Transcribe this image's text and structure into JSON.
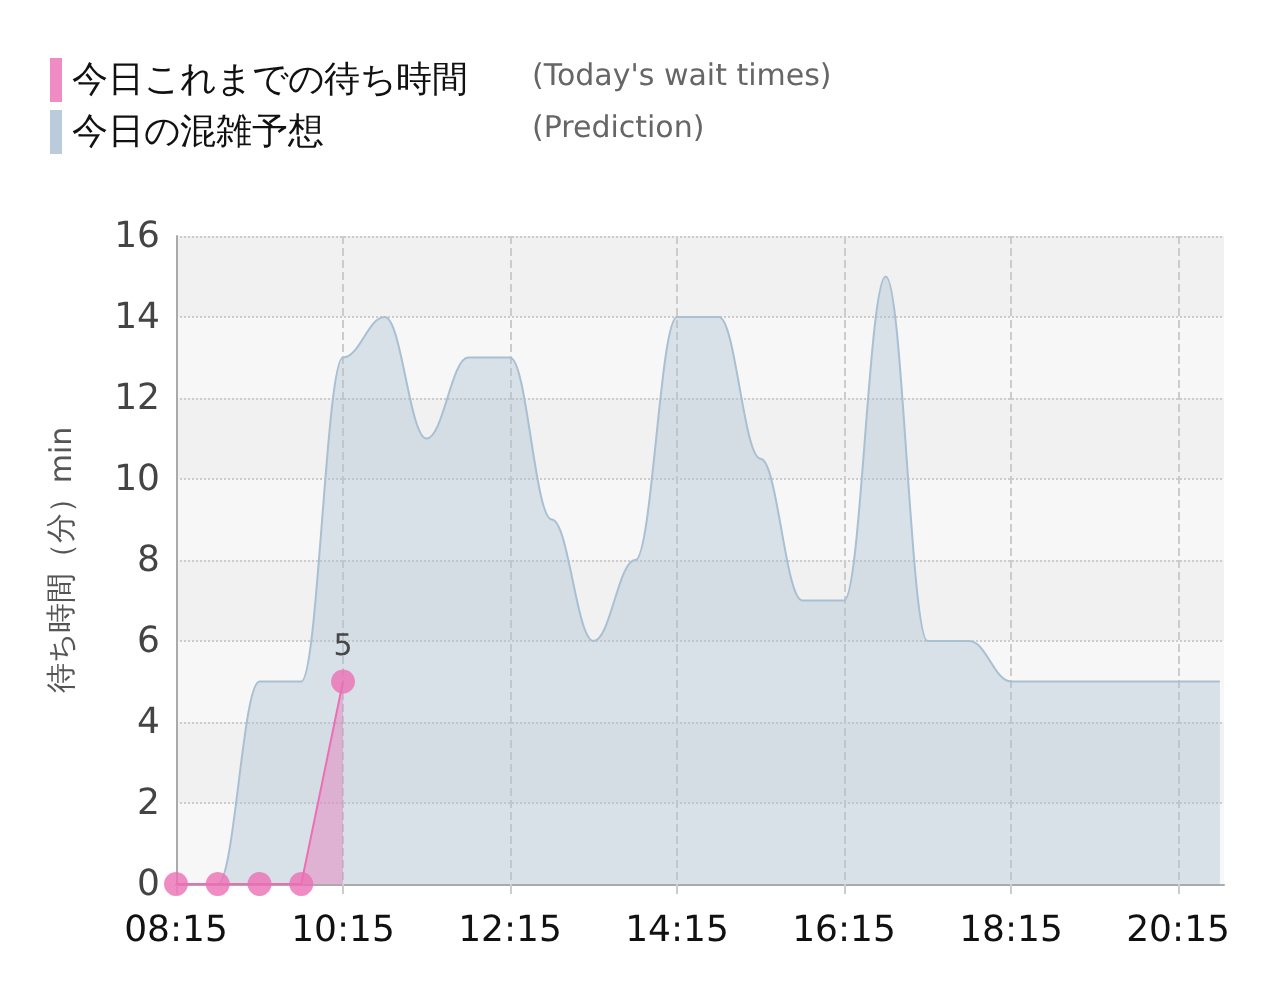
{
  "chart_data": {
    "type": "area",
    "ylabel": "待ち時間（分）min",
    "annotations": [
      "(Today's wait times)",
      "(Prediction)"
    ],
    "xlim": [
      8.25,
      20.8
    ],
    "xticks": [
      {
        "value": 8.25,
        "label": "08:15"
      },
      {
        "value": 10.25,
        "label": "10:15"
      },
      {
        "value": 12.25,
        "label": "12:15"
      },
      {
        "value": 14.25,
        "label": "14:15"
      },
      {
        "value": 16.25,
        "label": "16:15"
      },
      {
        "value": 18.25,
        "label": "18:15"
      },
      {
        "value": 20.25,
        "label": "20:15"
      }
    ],
    "ylim": [
      0,
      16
    ],
    "yticks": [
      0,
      2,
      4,
      6,
      8,
      10,
      12,
      14,
      16
    ],
    "grid": true,
    "legend": "top left",
    "series": [
      {
        "name": "今日これまでの待ち時間",
        "color": "#ec6fb5",
        "marker": "circle",
        "line_style": "solid",
        "x": [
          8.25,
          8.75,
          9.25,
          9.75,
          10.25
        ],
        "values": [
          0,
          0,
          0,
          0,
          5
        ],
        "value_labels": [
          null,
          null,
          null,
          null,
          "5"
        ]
      },
      {
        "name": "今日の混雑予想",
        "color": "#a9bfd2",
        "marker": "none",
        "x": [
          8.25,
          8.75,
          9.25,
          9.75,
          10.25,
          10.75,
          11.25,
          11.75,
          12.25,
          12.75,
          13.25,
          13.75,
          14.25,
          14.75,
          15.25,
          15.75,
          16.25,
          16.75,
          17.25,
          17.75,
          18.25,
          18.75,
          19.25,
          19.75,
          20.25,
          20.75
        ],
        "values": [
          0,
          0,
          5,
          5,
          13,
          14,
          11,
          13,
          13,
          9,
          6,
          8,
          14,
          14,
          10.5,
          7,
          7,
          15,
          6,
          6,
          5,
          5,
          5,
          5,
          5,
          5
        ]
      }
    ]
  }
}
